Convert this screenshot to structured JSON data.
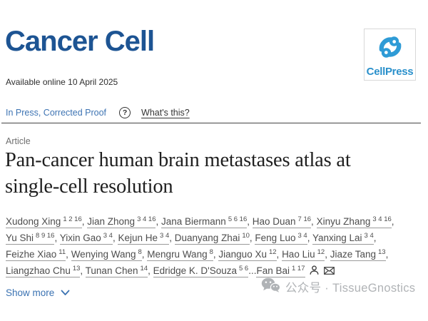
{
  "colors": {
    "journal_navy": "#1d5493",
    "cellpress_blue": "#2e9bd6",
    "link_blue": "#3a72b2",
    "text_dark": "#2e2e2e",
    "muted_gray": "#6f6f6f",
    "author_gray": "#4d4d4d",
    "watermark_gray": "#b0b3b6"
  },
  "journal": {
    "name": "Cancer Cell",
    "available_online": "Available online 10 April 2025",
    "publisher": "CellPress"
  },
  "status_bar": {
    "status": "In Press, Corrected Proof",
    "help_icon": "question-circle-icon",
    "whats_this_label": "What's this?"
  },
  "article": {
    "type_label": "Article",
    "title_line1": "Pan-cancer human brain metastases atlas at",
    "title_line2": "single-cell resolution",
    "show_more_label": "Show more"
  },
  "authors": {
    "lines": [
      [
        {
          "name": "Xudong Xing",
          "sup": "1 2 16",
          "sep": ", "
        },
        {
          "name": "Jian Zhong",
          "sup": "3 4 16",
          "sep": ", "
        },
        {
          "name": "Jana Biermann",
          "sup": "5 6 16",
          "sep": ", "
        },
        {
          "name": "Hao Duan",
          "sup": "7 16",
          "sep": ", "
        },
        {
          "name": "Xinyu Zhang",
          "sup": "3 4 16",
          "sep": ","
        }
      ],
      [
        {
          "name": "Yu Shi",
          "sup": "8 9 16",
          "sep": ", "
        },
        {
          "name": "Yixin Gao",
          "sup": "3 4",
          "sep": ", "
        },
        {
          "name": "Kejun He",
          "sup": "3 4",
          "sep": ", "
        },
        {
          "name": "Duanyang Zhai",
          "sup": "10",
          "sep": ", "
        },
        {
          "name": "Feng Luo",
          "sup": "3 4",
          "sep": ", "
        },
        {
          "name": "Yanxing Lai",
          "sup": "3 4",
          "sep": ","
        }
      ],
      [
        {
          "name": "Feizhe Xiao",
          "sup": "11",
          "sep": ", "
        },
        {
          "name": "Wenying Wang",
          "sup": "8",
          "sep": ", "
        },
        {
          "name": "Mengru Wang",
          "sup": "8",
          "sep": ", "
        },
        {
          "name": "Jianguo Xu",
          "sup": "12",
          "sep": ", "
        },
        {
          "name": "Hao Liu",
          "sup": "12",
          "sep": ", "
        },
        {
          "name": "Jiaze Tang",
          "sup": "13",
          "sep": ","
        }
      ],
      [
        {
          "name": "Liangzhao Chu",
          "sup": "13",
          "sep": ", "
        },
        {
          "name": "Tunan Chen",
          "sup": "14",
          "sep": ", "
        },
        {
          "name": "Edridge K. D'Souza",
          "sup": "5 6",
          "sep": "..."
        },
        {
          "name": "Fan Bai",
          "sup": "1 17",
          "sep": "",
          "corresponding": true
        }
      ]
    ]
  },
  "icons": {
    "publisher": "cellpress-swirl-icon",
    "help": "question-circle-icon",
    "corresponding_author": "person-icon",
    "email": "envelope-icon",
    "show_more": "chevron-down-icon",
    "watermark": "wechat-icon"
  },
  "watermark": {
    "text": "公众号 · TissueGnostics"
  }
}
